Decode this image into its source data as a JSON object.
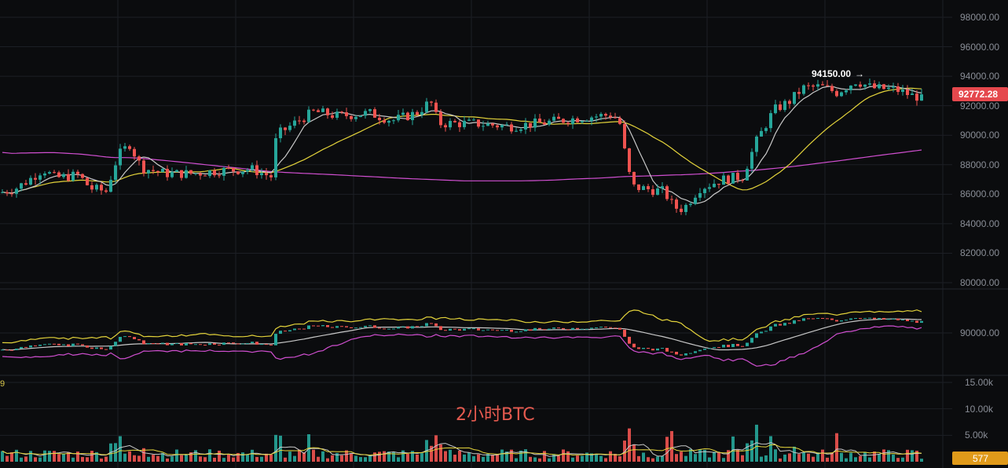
{
  "colors": {
    "up": "#26a69a",
    "down": "#ef5350",
    "ma_short": "#c8c8c8",
    "ma_mid": "#e3d33b",
    "ma_long": "#d04fd0",
    "price_tag_bg": "#e5484d",
    "volume_tag_bg": "#e09a1a"
  },
  "watermark": "2小时BTC",
  "left_edge_label": "9",
  "chart_data": [
    {
      "type": "candlestick",
      "panel": "price",
      "title": "",
      "y_ticks": [
        "98000.00",
        "96000.00",
        "94000.00",
        "92000.00",
        "90000.00",
        "88000.00",
        "86000.00",
        "84000.00",
        "82000.00",
        "80000.00"
      ],
      "ylim": [
        78700,
        99300
      ],
      "last_price_label": "92772.28",
      "last_price": 92772.28,
      "high_marker_label": "94150.00",
      "high_marker_value": 94150,
      "moving_averages": [
        "short",
        "mid",
        "long"
      ],
      "grid": true
    },
    {
      "type": "line",
      "panel": "bands",
      "y_ticks": [
        "90000.00"
      ],
      "series": [
        "upper",
        "middle",
        "lower"
      ]
    },
    {
      "type": "bar",
      "panel": "volume",
      "y_ticks": [
        "15.00k",
        "10.00k",
        "5.00k"
      ],
      "ylim": [
        0,
        16000
      ],
      "last_volume_label": "577",
      "last_volume": 577
    }
  ]
}
